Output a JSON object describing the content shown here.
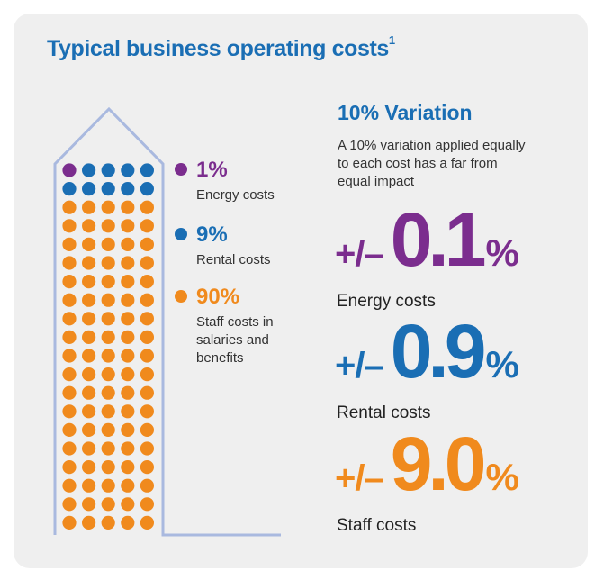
{
  "colors": {
    "card_background": "#efefef",
    "blue": "#1a6eb4",
    "purple": "#7b2d8e",
    "orange": "#f08a1d",
    "outline": "#a9b9df",
    "text": "#333333"
  },
  "title": {
    "text": "Typical business operating costs",
    "footnote": "1"
  },
  "dot_grid": {
    "rows": 20,
    "columns": 5,
    "counts": {
      "energy": 1,
      "rental": 9,
      "staff": 90
    }
  },
  "legend": [
    {
      "key": "energy",
      "percent": "1%",
      "label": "Energy costs",
      "color": "#7b2d8e"
    },
    {
      "key": "rental",
      "percent": "9%",
      "label": "Rental costs",
      "color": "#1a6eb4"
    },
    {
      "key": "staff",
      "percent": "90%",
      "label": "Staff costs in salaries and benefits",
      "color": "#f08a1d"
    }
  ],
  "variation": {
    "title": "10% Variation",
    "description": "A 10% variation applied equally to each cost has a far from equal impact"
  },
  "impacts": [
    {
      "sign": "+/–",
      "value": "0.1",
      "unit": "%",
      "label": "Energy costs",
      "color": "#7b2d8e"
    },
    {
      "sign": "+/–",
      "value": "0.9",
      "unit": "%",
      "label": "Rental costs",
      "color": "#1a6eb4"
    },
    {
      "sign": "+/–",
      "value": "9.0",
      "unit": "%",
      "label": "Staff costs",
      "color": "#f08a1d"
    }
  ]
}
